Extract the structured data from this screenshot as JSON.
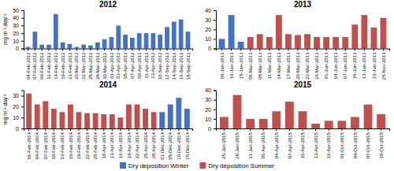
{
  "chart_data": [
    {
      "type": "bar",
      "title": "2012",
      "y_label": "mg m⁻² day⁻¹",
      "categories": [
        "04-Feb-2012",
        "07-Feb-2012",
        "09-Feb-2012",
        "12-Feb-2012",
        "14-Feb-2012",
        "19-Feb-2012",
        "21-Feb-2012",
        "20-Mar-2012",
        "22-Mar-2012",
        "25-Mar-2012",
        "28-Mar-2012",
        "30-Mar-2012",
        "01-Apr-2012",
        "03-Apr-2012",
        "05-Apr-2012",
        "07-Apr-2012",
        "09-Apr-2012",
        "11-Apr-2012",
        "13-Apr-2012",
        "10-Sep-2012",
        "12-Sep-2012",
        "14-Sep-2012",
        "16-Sep-2012",
        "18-Sep-2012"
      ],
      "series": [
        {
          "name": "Dry deposition Winter",
          "color": "#4472C4",
          "values": [
            2,
            22,
            5,
            5,
            45,
            8,
            6,
            2,
            5,
            4,
            8,
            12,
            15,
            30,
            18,
            14,
            20,
            20,
            20,
            18,
            28,
            35,
            38,
            22
          ]
        },
        {
          "name": "Dry deposition Summer",
          "color": "#C0504D",
          "values": [
            null,
            null,
            null,
            null,
            null,
            null,
            null,
            null,
            null,
            null,
            null,
            null,
            null,
            null,
            null,
            null,
            null,
            null,
            null,
            null,
            null,
            null,
            null,
            null
          ]
        }
      ],
      "ylim": [
        0,
        50
      ],
      "yticks": [
        0,
        10,
        20,
        30,
        40,
        50
      ]
    },
    {
      "type": "bar",
      "title": "2013",
      "categories": [
        "05-Jan-2013",
        "10-Jan-2013",
        "15-Jan-2013",
        "05-Mar-2013",
        "08-Mar-2013",
        "11-Mar-2013",
        "14-Mar-2013",
        "17-Mar-2013",
        "20-Mar-2013",
        "23-Mar-2013",
        "26-Mar-2013",
        "01-Jun-2013",
        "04-Jun-2013",
        "07-Jun-2013",
        "10-Jun-2013",
        "13-Jun-2013",
        "16-Jun-2013",
        "25-Nov-2013"
      ],
      "series": [
        {
          "name": "Dry deposition Winter",
          "color": "#4472C4",
          "values": [
            10,
            35,
            7,
            null,
            null,
            null,
            null,
            null,
            null,
            null,
            null,
            null,
            null,
            null,
            null,
            null,
            null,
            null
          ]
        },
        {
          "name": "Dry deposition Summer",
          "color": "#C0504D",
          "values": [
            null,
            null,
            null,
            12,
            15,
            12,
            35,
            15,
            14,
            15,
            12,
            12,
            12,
            12,
            25,
            35,
            22,
            32
          ]
        }
      ],
      "ylim": [
        0,
        40
      ],
      "yticks": [
        0,
        10,
        20,
        30,
        40
      ]
    },
    {
      "type": "bar",
      "title": "2014",
      "y_label": "mg m⁻² day⁻¹",
      "categories": [
        "01-Feb-2014",
        "04-Feb-2014",
        "07-Feb-2014",
        "10-Feb-2014",
        "13-Feb-2014",
        "16-Feb-2014",
        "19-Feb-2014",
        "22-Feb-2014",
        "25-Feb-2014",
        "10-Apr-2014",
        "13-Apr-2014",
        "16-Apr-2014",
        "19-Apr-2014",
        "22-Apr-2014",
        "25-Apr-2014",
        "28-Apr-2014",
        "01-Dec-2014",
        "05-Dec-2014",
        "10-Dec-2014",
        "15-Dec-2014"
      ],
      "series": [
        {
          "name": "Dry deposition Winter",
          "color": "#4472C4",
          "values": [
            null,
            null,
            null,
            null,
            null,
            null,
            null,
            null,
            null,
            null,
            null,
            null,
            null,
            null,
            null,
            null,
            15,
            22,
            28,
            18
          ]
        },
        {
          "name": "Dry deposition Summer",
          "color": "#C0504D",
          "values": [
            32,
            22,
            25,
            18,
            15,
            22,
            15,
            14,
            14,
            13,
            13,
            10,
            22,
            22,
            18,
            15,
            null,
            null,
            null,
            null
          ]
        }
      ],
      "ylim": [
        0,
        35
      ],
      "yticks": [
        0,
        10,
        20,
        30
      ]
    },
    {
      "type": "bar",
      "title": "2015",
      "categories": [
        "25-Jan-2015",
        "28-Jan-2015",
        "31-Jan-2015",
        "01-Apr-2015",
        "04-Apr-2015",
        "07-Apr-2015",
        "10-Apr-2015",
        "13-Apr-2015",
        "16-Apr-2015",
        "01-Oct-2015",
        "04-Oct-2015",
        "07-Oct-2015",
        "10-Oct-2015"
      ],
      "series": [
        {
          "name": "Dry deposition Winter",
          "color": "#4472C4",
          "values": [
            null,
            null,
            null,
            null,
            null,
            null,
            null,
            null,
            null,
            null,
            null,
            null,
            null
          ]
        },
        {
          "name": "Dry deposition Summer",
          "color": "#C0504D",
          "values": [
            12,
            35,
            10,
            10,
            18,
            28,
            18,
            5,
            8,
            8,
            12,
            25,
            15
          ]
        }
      ],
      "ylim": [
        0,
        40
      ],
      "yticks": [
        0,
        10,
        20,
        30,
        40
      ]
    }
  ]
}
